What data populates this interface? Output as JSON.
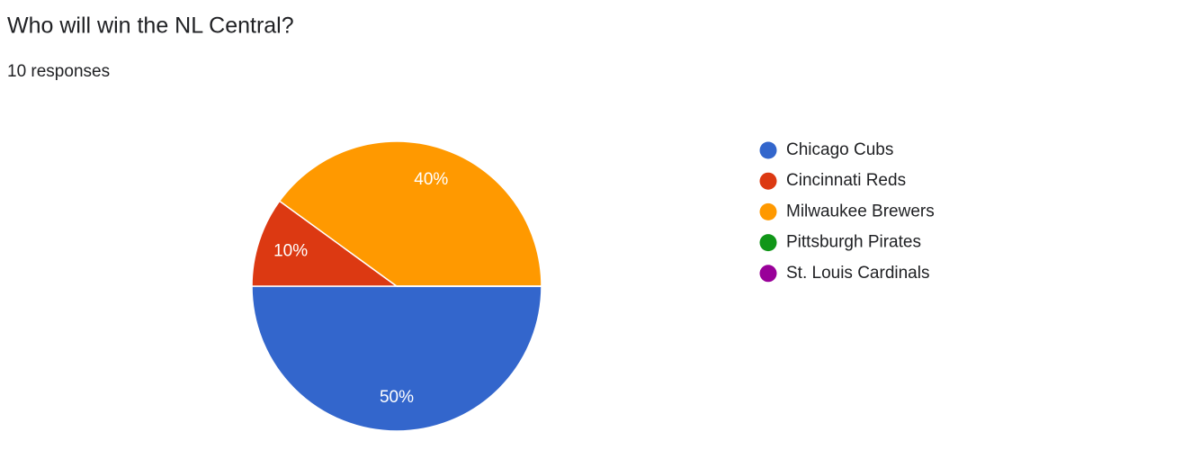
{
  "chart_data": {
    "type": "pie",
    "title": "Who will win the NL Central?",
    "subtitle": "10 responses",
    "categories": [
      "Chicago Cubs",
      "Cincinnati Reds",
      "Milwaukee Brewers",
      "Pittsburgh Pirates",
      "St. Louis Cardinals"
    ],
    "values": [
      50,
      10,
      40,
      0,
      0
    ],
    "value_labels": [
      "50%",
      "10%",
      "40%",
      null,
      null
    ],
    "colors": [
      "#3366cc",
      "#dc3912",
      "#ff9900",
      "#109618",
      "#990099"
    ],
    "legend": "right"
  }
}
